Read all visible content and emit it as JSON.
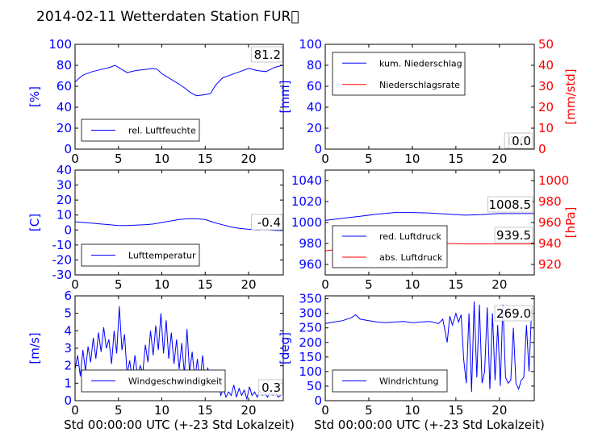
{
  "title": "2014-02-11 Wetterdaten Station FUR\u0000",
  "colors": {
    "left_axis": "#0000ff",
    "right_axis": "#ff0000",
    "line1": "#0000ff",
    "line2": "#ff0000"
  },
  "xaxis": {
    "ticks": [
      0,
      5,
      10,
      15,
      20
    ],
    "range": [
      0,
      24
    ],
    "label": "Std 00:00:00 UTC (+-23 Std Lokalzeit)"
  },
  "chart_data": [
    {
      "id": "humidity",
      "type": "line",
      "ylabel": "[%]",
      "ylim": [
        0,
        100
      ],
      "yticks": [
        0,
        20,
        40,
        60,
        80,
        100
      ],
      "current_value": "81.2",
      "legend_position": "lower-left",
      "series": [
        {
          "name": "rel. Luftfeuchte",
          "color": "#0000ff",
          "axis": "left",
          "x": [
            0,
            0.5,
            1,
            2,
            3,
            4,
            4.6,
            5.2,
            6,
            7,
            8,
            9,
            9.5,
            10,
            11,
            12,
            12.7,
            13.3,
            14,
            15,
            15.6,
            16.2,
            17,
            18,
            19,
            20,
            21,
            22,
            23,
            23.9
          ],
          "y": [
            64,
            68,
            71,
            74,
            76,
            78,
            80,
            77,
            73,
            75,
            76,
            77,
            76,
            72,
            67,
            62,
            58,
            54,
            51,
            52,
            53,
            61,
            68,
            71,
            74,
            77,
            75,
            74,
            78,
            80
          ]
        }
      ]
    },
    {
      "id": "precipitation",
      "type": "line",
      "ylabel": "[mm]",
      "ylim": [
        0,
        100
      ],
      "yticks": [
        0,
        20,
        40,
        60,
        80,
        100
      ],
      "ylabel_right": "[mm/std]",
      "ylim_right": [
        0,
        50
      ],
      "yticks_right": [
        0,
        10,
        20,
        30,
        40,
        50
      ],
      "current_value": "0.0",
      "current_value_2": "0.0",
      "legend_position": "upper-left",
      "series": [
        {
          "name": "kum. Niederschlag",
          "color": "#0000ff",
          "axis": "left",
          "x": [
            0,
            24
          ],
          "y": [
            0,
            0
          ]
        },
        {
          "name": "Niederschlagsrate",
          "color": "#ff0000",
          "axis": "right",
          "x": [
            0,
            24
          ],
          "y": [
            0,
            0
          ]
        }
      ]
    },
    {
      "id": "temperature",
      "type": "line",
      "ylabel": "[C]",
      "ylim": [
        -30,
        40
      ],
      "yticks": [
        -30,
        -20,
        -10,
        0,
        10,
        20,
        30,
        40
      ],
      "current_value": "-0.4",
      "legend_position": "lower-left",
      "series": [
        {
          "name": "Lufttemperatur",
          "color": "#0000ff",
          "axis": "left",
          "x": [
            0,
            1,
            2,
            3,
            4,
            5,
            6,
            7,
            8,
            9,
            10,
            11,
            12,
            13,
            14,
            15,
            16,
            17,
            18,
            19,
            20,
            21,
            22,
            23,
            23.9
          ],
          "y": [
            5.5,
            5,
            4.5,
            4,
            3.5,
            3,
            3,
            3.2,
            3.5,
            4,
            5,
            6,
            7,
            7.5,
            7.5,
            7,
            5,
            3.5,
            2,
            1,
            0.5,
            0,
            0.3,
            -0.2,
            -0.4
          ]
        }
      ]
    },
    {
      "id": "pressure",
      "type": "line",
      "ylabel": "",
      "ylim": [
        950,
        1050
      ],
      "yticks": [
        960,
        980,
        1000,
        1020,
        1040
      ],
      "ylabel_right": "[hPa]",
      "ylim_right": [
        910,
        1010
      ],
      "yticks_right": [
        920,
        940,
        960,
        980,
        1000
      ],
      "current_value": "1008.5",
      "current_value_2": "939.5",
      "legend_position": "lower-left",
      "series": [
        {
          "name": "red. Luftdruck",
          "color": "#0000ff",
          "axis": "left",
          "x": [
            0,
            2,
            4,
            6,
            8,
            10,
            12,
            14,
            16,
            18,
            20,
            22,
            24
          ],
          "y": [
            1002,
            1004,
            1006,
            1008,
            1009.5,
            1009.5,
            1009,
            1008,
            1007,
            1007.5,
            1008.5,
            1008.5,
            1008.5
          ]
        },
        {
          "name": "abs. Luftdruck",
          "color": "#ff0000",
          "axis": "right",
          "x": [
            0,
            2,
            4,
            6,
            8,
            10,
            12,
            14,
            16,
            18,
            20,
            22,
            24
          ],
          "y": [
            933,
            935,
            937,
            939,
            940.5,
            941,
            940.5,
            940,
            939.5,
            939.5,
            939.5,
            939.5,
            939.5
          ]
        }
      ]
    },
    {
      "id": "windspeed",
      "type": "line",
      "ylabel": "[m/s]",
      "ylim": [
        0,
        6
      ],
      "yticks": [
        0,
        1,
        2,
        3,
        4,
        5,
        6
      ],
      "current_value": "0.3",
      "legend_position": "lower-left",
      "series": [
        {
          "name": "Windgeschwindigkeit",
          "color": "#0000ff",
          "axis": "left",
          "x": [
            0,
            0.3,
            0.6,
            0.9,
            1.2,
            1.5,
            1.8,
            2.1,
            2.4,
            2.7,
            3,
            3.3,
            3.6,
            3.9,
            4.2,
            4.5,
            4.8,
            5.1,
            5.4,
            5.7,
            6,
            6.3,
            6.6,
            6.9,
            7.2,
            7.5,
            7.8,
            8.1,
            8.4,
            8.7,
            9,
            9.3,
            9.6,
            9.9,
            10.2,
            10.5,
            10.8,
            11.1,
            11.4,
            11.7,
            12,
            12.3,
            12.6,
            12.9,
            13.2,
            13.5,
            13.8,
            14.1,
            14.4,
            14.7,
            15,
            15.3,
            15.6,
            15.9,
            16.2,
            16.5,
            16.8,
            17.1,
            17.4,
            17.7,
            18,
            18.3,
            18.6,
            18.9,
            19.2,
            19.5,
            19.8,
            20.1,
            20.4,
            20.7,
            21,
            21.3,
            21.6,
            21.9,
            22.2,
            22.5,
            22.8,
            23.1,
            23.4,
            23.7
          ],
          "y": [
            1.8,
            2.6,
            1.4,
            2.9,
            1.7,
            3.1,
            2.2,
            3.6,
            2.4,
            3.9,
            2.8,
            4.2,
            3.0,
            3.5,
            2.1,
            4.0,
            2.7,
            5.4,
            2.9,
            3.8,
            1.5,
            2.3,
            1.2,
            2.6,
            1.4,
            2.0,
            1.6,
            3.2,
            2.2,
            4.0,
            2.6,
            4.3,
            2.9,
            5.0,
            2.7,
            4.6,
            2.4,
            3.9,
            2.1,
            3.5,
            1.8,
            3.3,
            1.5,
            4.1,
            1.6,
            2.8,
            1.2,
            2.4,
            1.0,
            2.6,
            1.1,
            1.9,
            0.8,
            1.6,
            0.5,
            1.1,
            0.3,
            0.7,
            0.2,
            0.5,
            0.3,
            0.9,
            0.2,
            0.7,
            0.3,
            0.6,
            0.1,
            0.8,
            0.3,
            0.5,
            0.2,
            0.6,
            0.3,
            0.4,
            0.2,
            0.6,
            0.3,
            0.5,
            0.2,
            0.3
          ]
        }
      ]
    },
    {
      "id": "winddirection",
      "type": "line",
      "ylabel": "[deg]",
      "ylim": [
        0,
        360
      ],
      "yticks": [
        0,
        50,
        100,
        150,
        200,
        250,
        300,
        350
      ],
      "current_value": "269.0",
      "legend_position": "lower-left",
      "series": [
        {
          "name": "Windrichtung",
          "color": "#0000ff",
          "axis": "left",
          "x": [
            0,
            1,
            2,
            3,
            3.5,
            4,
            5,
            6,
            7,
            8,
            9,
            10,
            11,
            12,
            13,
            13.5,
            14,
            14.3,
            14.6,
            15,
            15.3,
            15.6,
            15.9,
            16.2,
            16.5,
            16.8,
            17.1,
            17.4,
            17.7,
            18,
            18.3,
            18.6,
            18.9,
            19.2,
            19.5,
            19.8,
            20.1,
            20.4,
            20.7,
            21,
            21.3,
            21.6,
            21.9,
            22.2,
            22.5,
            22.8,
            23.1,
            23.4,
            23.7
          ],
          "y": [
            265,
            270,
            275,
            285,
            295,
            280,
            275,
            270,
            268,
            270,
            272,
            268,
            270,
            272,
            265,
            280,
            200,
            290,
            260,
            300,
            270,
            295,
            140,
            60,
            300,
            30,
            340,
            80,
            330,
            60,
            100,
            320,
            40,
            300,
            70,
            260,
            50,
            330,
            80,
            60,
            70,
            250,
            60,
            40,
            70,
            80,
            260,
            100,
            320
          ]
        }
      ]
    }
  ]
}
